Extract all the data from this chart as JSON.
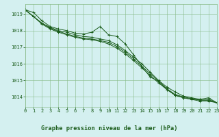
{
  "bg_color": "#cceedd",
  "plot_bg_color": "#d4f0f0",
  "grid_color": "#88bb88",
  "line_color": "#1a5c1a",
  "title": "Graphe pression niveau de la mer (hPa)",
  "title_color": "#1a5c1a",
  "title_bg": "#88cc88",
  "xlim": [
    0,
    23
  ],
  "ylim": [
    1013.4,
    1019.6
  ],
  "yticks": [
    1014,
    1015,
    1016,
    1017,
    1018,
    1019
  ],
  "xticks": [
    0,
    1,
    2,
    3,
    4,
    5,
    6,
    7,
    8,
    9,
    10,
    11,
    12,
    13,
    14,
    15,
    16,
    17,
    18,
    19,
    20,
    21,
    22,
    23
  ],
  "series": [
    [
      1019.25,
      1019.1,
      1018.6,
      1018.25,
      1018.1,
      1018.0,
      1017.85,
      1017.8,
      1017.9,
      1018.25,
      1017.75,
      1017.65,
      1017.2,
      1016.55,
      1015.85,
      1015.2,
      1014.95,
      1014.45,
      1014.1,
      1013.95,
      1013.85,
      1013.85,
      1013.95,
      1013.65
    ],
    [
      1019.25,
      1018.85,
      1018.45,
      1018.2,
      1018.0,
      1017.9,
      1017.75,
      1017.65,
      1017.6,
      1017.5,
      1017.4,
      1017.15,
      1016.8,
      1016.4,
      1016.0,
      1015.5,
      1015.0,
      1014.6,
      1014.3,
      1014.05,
      1013.95,
      1013.85,
      1013.85,
      1013.65
    ],
    [
      1019.25,
      1018.85,
      1018.45,
      1018.15,
      1017.95,
      1017.8,
      1017.65,
      1017.55,
      1017.5,
      1017.4,
      1017.3,
      1017.05,
      1016.7,
      1016.3,
      1015.85,
      1015.4,
      1014.95,
      1014.5,
      1014.15,
      1014.0,
      1013.9,
      1013.8,
      1013.8,
      1013.65
    ],
    [
      1019.25,
      1018.85,
      1018.4,
      1018.1,
      1017.9,
      1017.75,
      1017.6,
      1017.5,
      1017.45,
      1017.35,
      1017.2,
      1016.95,
      1016.6,
      1016.2,
      1015.75,
      1015.3,
      1014.85,
      1014.45,
      1014.1,
      1013.95,
      1013.85,
      1013.75,
      1013.75,
      1013.65
    ]
  ],
  "tick_fontsize": 5.0,
  "title_fontsize": 6.2
}
